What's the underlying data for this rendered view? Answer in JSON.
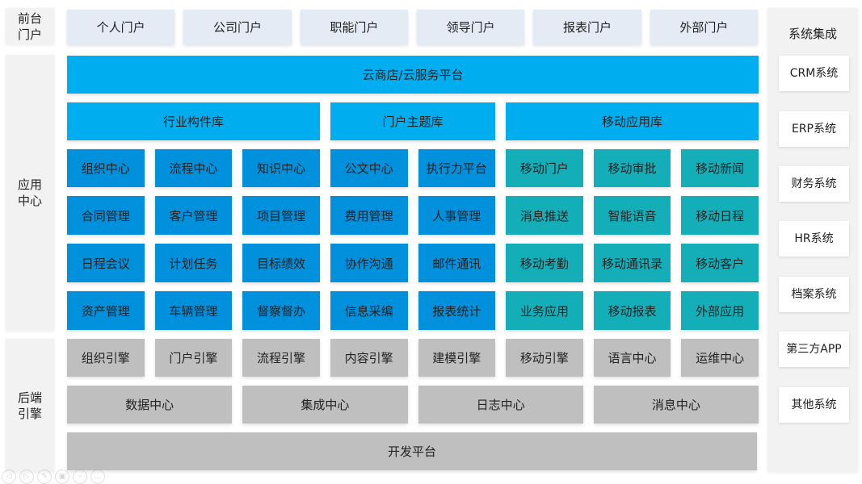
{
  "layers": {
    "front": "前台门户",
    "app": "应用中心",
    "backend": "后端引擎"
  },
  "portals": [
    "个人门户",
    "公司门户",
    "职能门户",
    "领导门户",
    "报表门户",
    "外部门户"
  ],
  "platform": "云商店/云服务平台",
  "libraries": [
    "行业构件库",
    "门户主题库",
    "移动应用库"
  ],
  "modules": [
    [
      "组织中心",
      "流程中心",
      "知识中心",
      "公文中心",
      "执行力平台"
    ],
    [
      "合同管理",
      "客户管理",
      "项目管理",
      "费用管理",
      "人事管理"
    ],
    [
      "日程会议",
      "计划任务",
      "目标绩效",
      "协作沟通",
      "邮件通讯"
    ],
    [
      "资产管理",
      "车辆管理",
      "督察督办",
      "信息采编",
      "报表统计"
    ]
  ],
  "mobile_apps": [
    [
      "移动门户",
      "移动审批",
      "移动新闻"
    ],
    [
      "消息推送",
      "智能语音",
      "移动日程"
    ],
    [
      "移动考勤",
      "移动通讯录",
      "移动客户"
    ],
    [
      "业务应用",
      "移动报表",
      "外部应用"
    ]
  ],
  "engines": [
    "组织引擎",
    "门户引擎",
    "流程引擎",
    "内容引擎",
    "建模引擎",
    "移动引擎",
    "语言中心",
    "运维中心"
  ],
  "centers": [
    "数据中心",
    "集成中心",
    "日志中心",
    "消息中心"
  ],
  "dev_platform": "开发平台",
  "integration": {
    "title": "系统集成",
    "systems": [
      "CRM系统",
      "ERP系统",
      "财务系统",
      "HR系统",
      "档案系统",
      "第三方APP",
      "其他系统"
    ]
  },
  "colors": {
    "portal": "#e4ebf5",
    "platform": "#00aeef",
    "module": "#0090dc",
    "mobile": "#14aeb8",
    "engine": "#bfbfbf",
    "panel": "#f2f2f2"
  }
}
